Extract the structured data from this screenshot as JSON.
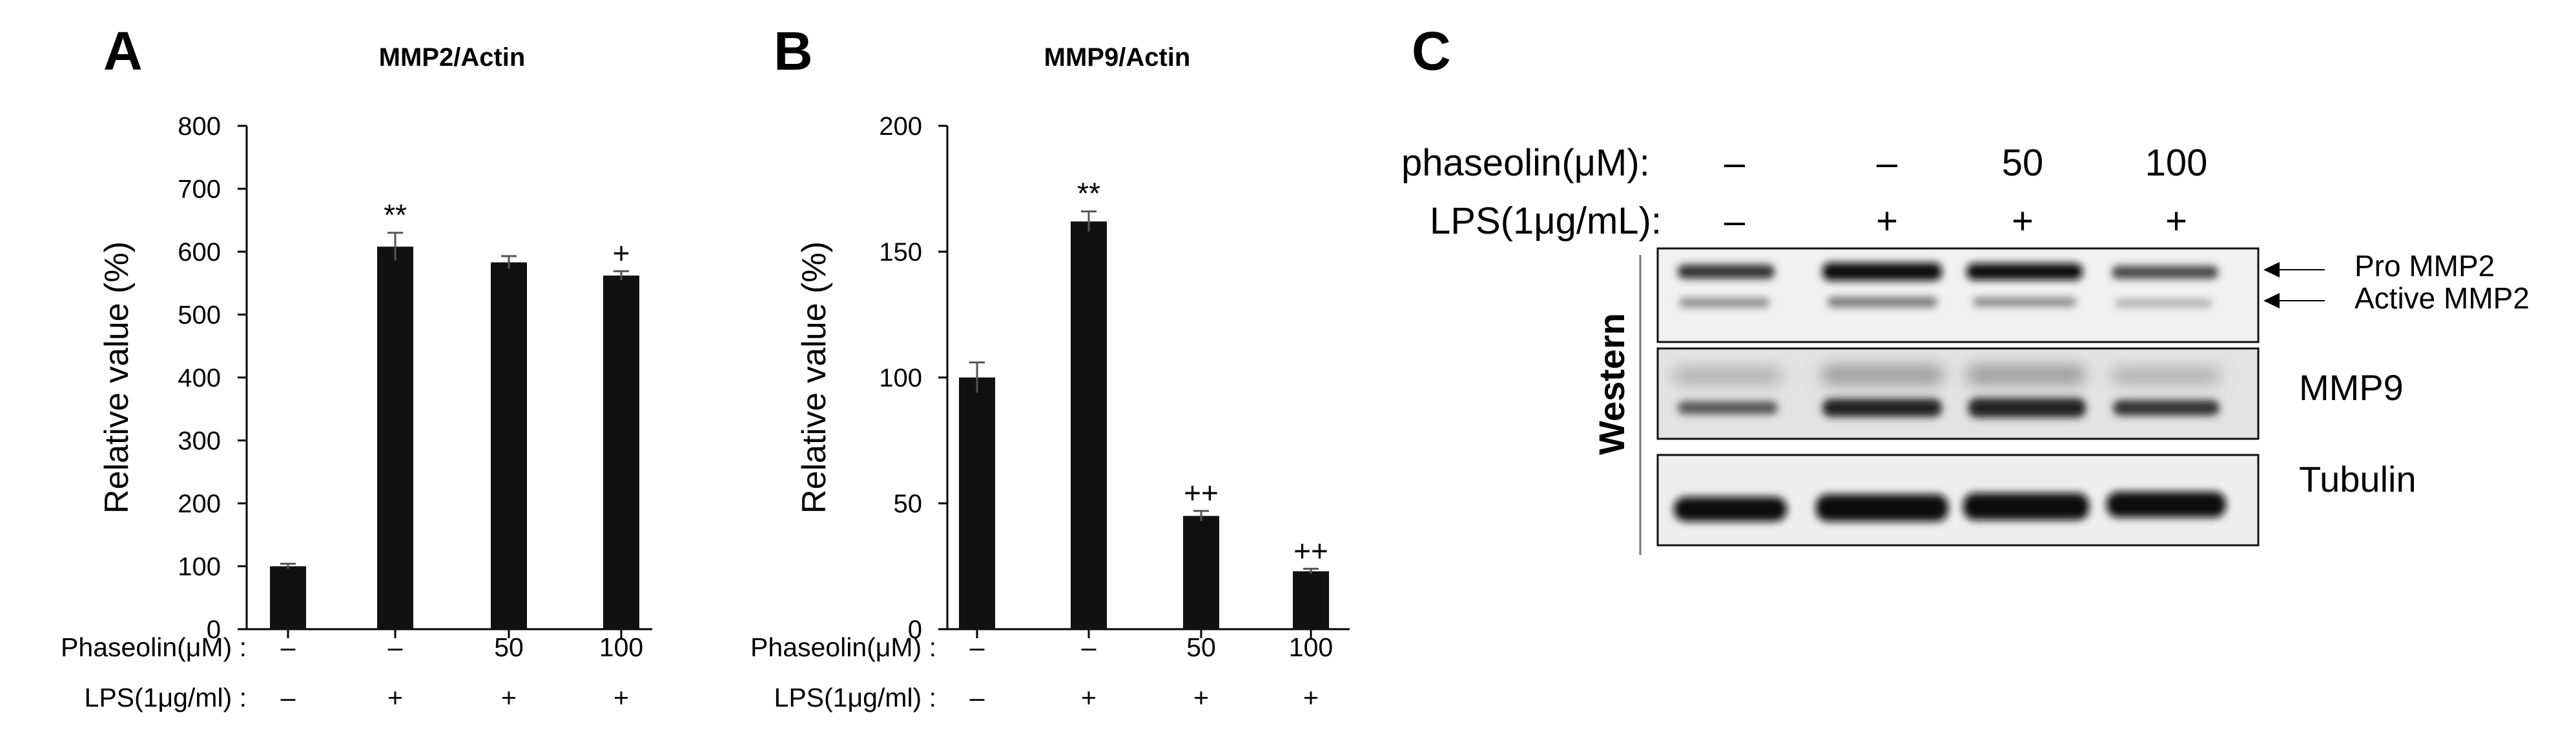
{
  "panels": {
    "a": "A",
    "b": "B",
    "c": "C"
  },
  "chart_data": [
    {
      "type": "bar",
      "panel": "A",
      "title": "MMP2/Actin",
      "ylabel": "Relative value (%)",
      "ylim": [
        0,
        800
      ],
      "yticks": [
        "0",
        "100",
        "200",
        "300",
        "400",
        "500",
        "600",
        "700",
        "800"
      ],
      "values": [
        100,
        608,
        583,
        562
      ],
      "errors": [
        4,
        22,
        10,
        7
      ],
      "annotations": [
        "",
        "**",
        "",
        "+"
      ],
      "bar_color": "#111111",
      "condition_rows": [
        {
          "label": "Phaseolin(μM) :",
          "values": [
            "–",
            "–",
            "50",
            "100"
          ]
        },
        {
          "label": "LPS(1μg/ml) :",
          "values": [
            "–",
            "+",
            "+",
            "+"
          ]
        }
      ]
    },
    {
      "type": "bar",
      "panel": "B",
      "title": "MMP9/Actin",
      "ylabel": "Relative value (%)",
      "ylim": [
        0,
        200
      ],
      "yticks": [
        "0",
        "50",
        "100",
        "150",
        "200"
      ],
      "values": [
        100,
        162,
        45,
        23
      ],
      "errors": [
        6,
        4,
        2,
        1
      ],
      "annotations": [
        "",
        "**",
        "++",
        "++"
      ],
      "bar_color": "#111111",
      "condition_rows": [
        {
          "label": "Phaseolin(μM) :",
          "values": [
            "–",
            "–",
            "50",
            "100"
          ]
        },
        {
          "label": "LPS(1μg/ml) :",
          "values": [
            "–",
            "+",
            "+",
            "+"
          ]
        }
      ]
    }
  ],
  "western": {
    "rows": [
      {
        "label": "phaseolin(μM):",
        "values": [
          "–",
          "–",
          "50",
          "100"
        ]
      },
      {
        "label": "LPS(1μg/mL):",
        "values": [
          "–",
          "+",
          "+",
          "+"
        ]
      }
    ],
    "side_label": "Western",
    "blots": [
      {
        "labels": [
          "Pro MMP2",
          "Active MMP2"
        ]
      },
      {
        "labels": [
          "MMP9"
        ]
      },
      {
        "labels": [
          "Tubulin"
        ]
      }
    ]
  }
}
